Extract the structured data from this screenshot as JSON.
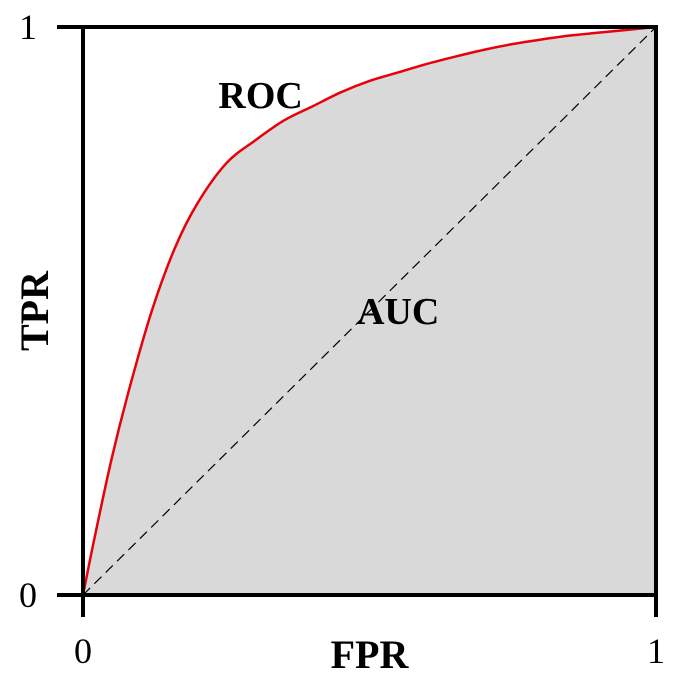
{
  "chart_data": {
    "type": "area",
    "xlabel": "FPR",
    "ylabel": "TPR",
    "xlim": [
      0,
      1
    ],
    "ylim": [
      0,
      1
    ],
    "x_ticks": [
      "0",
      "1"
    ],
    "y_ticks": [
      "0",
      "1"
    ],
    "grid": false,
    "series": [
      {
        "x": [
          0,
          0.02,
          0.05,
          0.08,
          0.12,
          0.16,
          0.2,
          0.25,
          0.3,
          0.35,
          0.4,
          0.45,
          0.5,
          0.55,
          0.6,
          0.65,
          0.7,
          0.75,
          0.8,
          0.85,
          0.9,
          0.95,
          1.0
        ],
        "y": [
          0,
          0.1,
          0.24,
          0.36,
          0.5,
          0.61,
          0.69,
          0.76,
          0.8,
          0.835,
          0.86,
          0.885,
          0.905,
          0.92,
          0.935,
          0.948,
          0.96,
          0.97,
          0.978,
          0.985,
          0.99,
          0.995,
          1.0
        ],
        "color": "#e8000b",
        "fill": "#d9d9d9"
      },
      {
        "x": [
          0,
          1
        ],
        "y": [
          0,
          1
        ],
        "color": "#000000",
        "style": "dashed"
      }
    ],
    "annotations": [
      {
        "text": "ROC",
        "x": 0.31,
        "y": 0.88
      },
      {
        "text": "AUC",
        "x": 0.55,
        "y": 0.5
      }
    ]
  }
}
